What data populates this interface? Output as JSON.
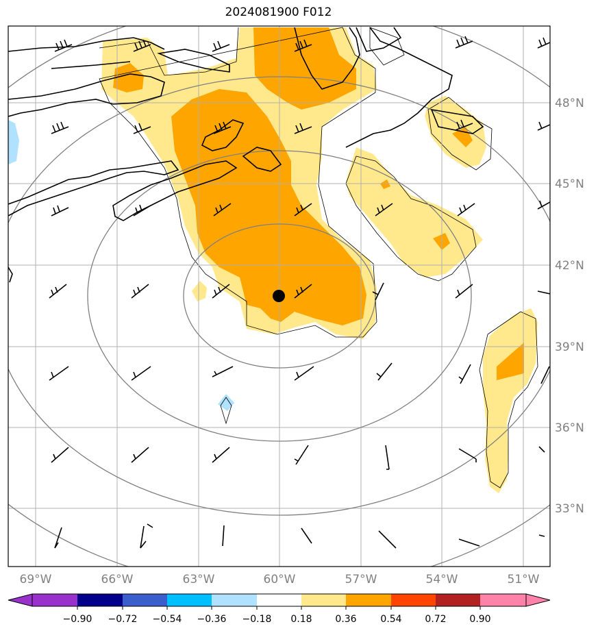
{
  "title": "2024081900 F012",
  "map": {
    "lon_labels": [
      "69°W",
      "66°W",
      "63°W",
      "60°W",
      "57°W",
      "54°W",
      "51°W"
    ],
    "lat_labels": [
      "48°N",
      "45°N",
      "42°N",
      "39°N",
      "36°N",
      "33°N"
    ],
    "center_marker": {
      "lon": -60.0,
      "lat": 40.8
    }
  },
  "colorbar": {
    "ticks": [
      "−0.90",
      "−0.72",
      "−0.54",
      "−0.36",
      "−0.18",
      "0.18",
      "0.36",
      "0.54",
      "0.72",
      "0.90"
    ],
    "colors": [
      "#9932cc",
      "#00008b",
      "#3a5fcd",
      "#00bfff",
      "#b0e2ff",
      "#ffffff",
      "#ffe98c",
      "#ffa500",
      "#ff4500",
      "#b22222",
      "#ff82ab"
    ]
  },
  "colors": {
    "fill_low": "#ffe98c",
    "fill_mid": "#ffa500",
    "fill_neg": "#b0e2ff",
    "grid": "#b0b0b0",
    "range_rings": "#808080",
    "coast": "#000000"
  }
}
